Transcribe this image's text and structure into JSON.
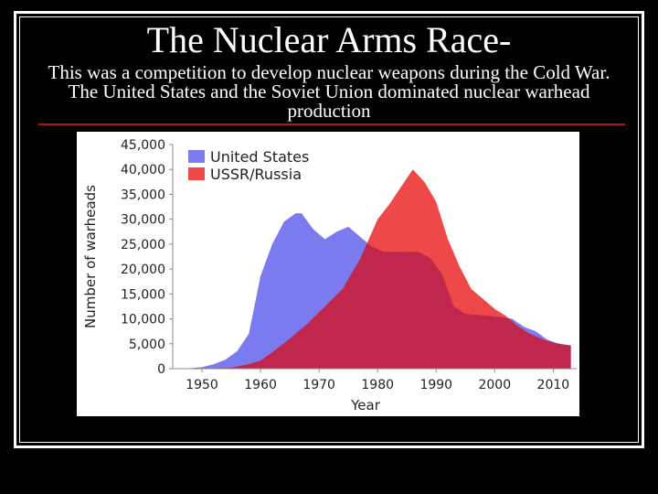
{
  "slide": {
    "title": "The Nuclear Arms Race-",
    "body": "This was a competition to develop nuclear weapons during the Cold War.  The United States and the Soviet Union dominated nuclear warhead production"
  },
  "colors": {
    "background": "#000000",
    "us": "#7b7bf0",
    "ussr": "#ef4848",
    "overlap": "#c0274d",
    "rule": "#b01010"
  },
  "chart_data": {
    "type": "area",
    "xlabel": "Year",
    "ylabel": "Number of warheads",
    "xlim": [
      1945,
      2014
    ],
    "ylim": [
      0,
      45000
    ],
    "xticks": [
      1950,
      1960,
      1970,
      1980,
      1990,
      2000,
      2010
    ],
    "xtick_labels": [
      "1950",
      "1960",
      "1970",
      "1980",
      "1990",
      "2000",
      "2010"
    ],
    "yticks": [
      0,
      5000,
      10000,
      15000,
      20000,
      25000,
      30000,
      35000,
      40000,
      45000
    ],
    "ytick_labels": [
      "0",
      "5,000",
      "10,000",
      "15,000",
      "20,000",
      "25,000",
      "30,000",
      "35,000",
      "40,000",
      "45,000"
    ],
    "legend_position": "top-left",
    "series": [
      {
        "name": "United States",
        "x": [
          1945,
          1948,
          1950,
          1952,
          1954,
          1956,
          1958,
          1960,
          1962,
          1964,
          1966,
          1967,
          1969,
          1971,
          1973,
          1975,
          1977,
          1979,
          1981,
          1983,
          1985,
          1987,
          1989,
          1991,
          1993,
          1995,
          1997,
          1999,
          2001,
          2003,
          2005,
          2007,
          2009,
          2011,
          2013
        ],
        "values": [
          0,
          100,
          300,
          900,
          1800,
          3500,
          7000,
          18600,
          25000,
          29500,
          31200,
          31200,
          28000,
          26000,
          27500,
          28500,
          26500,
          24500,
          23500,
          23400,
          23500,
          23400,
          22200,
          19000,
          12500,
          11000,
          10800,
          10600,
          10400,
          10000,
          8400,
          7500,
          5800,
          5000,
          4700
        ]
      },
      {
        "name": "USSR/Russia",
        "x": [
          1945,
          1949,
          1952,
          1955,
          1958,
          1960,
          1962,
          1965,
          1968,
          1971,
          1974,
          1977,
          1980,
          1982,
          1984,
          1986,
          1988,
          1990,
          1992,
          1994,
          1996,
          1998,
          2000,
          2002,
          2004,
          2006,
          2008,
          2010,
          2013
        ],
        "values": [
          0,
          0,
          50,
          200,
          900,
          1600,
          3300,
          6000,
          9000,
          12500,
          16000,
          22000,
          30000,
          33000,
          36500,
          40000,
          37500,
          33500,
          26000,
          20500,
          16000,
          14000,
          12000,
          10500,
          8500,
          7000,
          6000,
          5200,
          4600
        ]
      }
    ]
  }
}
